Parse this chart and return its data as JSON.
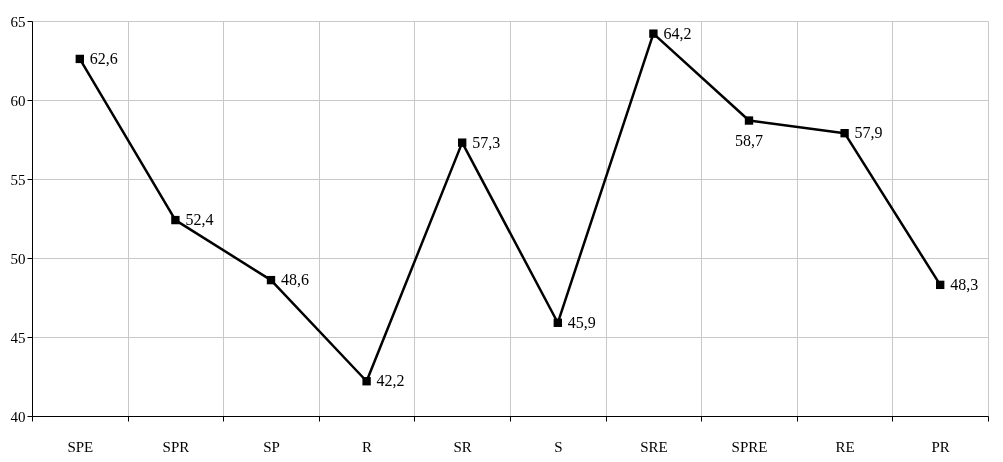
{
  "chart_data": {
    "type": "line",
    "categories": [
      "SPE",
      "SPR",
      "SP",
      "R",
      "SR",
      "S",
      "SRE",
      "SPRE",
      "RE",
      "PR"
    ],
    "series": [
      {
        "color": "#000000",
        "values": [
          62.6,
          52.4,
          48.6,
          42.2,
          57.3,
          45.9,
          64.2,
          58.7,
          57.9,
          48.3
        ],
        "value_labels": [
          "62,6",
          "52,4",
          "48,6",
          "42,2",
          "57,3",
          "45,9",
          "64,2",
          "58,7",
          "57,9",
          "48,3"
        ]
      }
    ],
    "ylim": [
      40,
      65
    ],
    "yticks": [
      40,
      45,
      50,
      55,
      60,
      65
    ],
    "grid": true,
    "marker": "square",
    "line_style": "solid"
  }
}
